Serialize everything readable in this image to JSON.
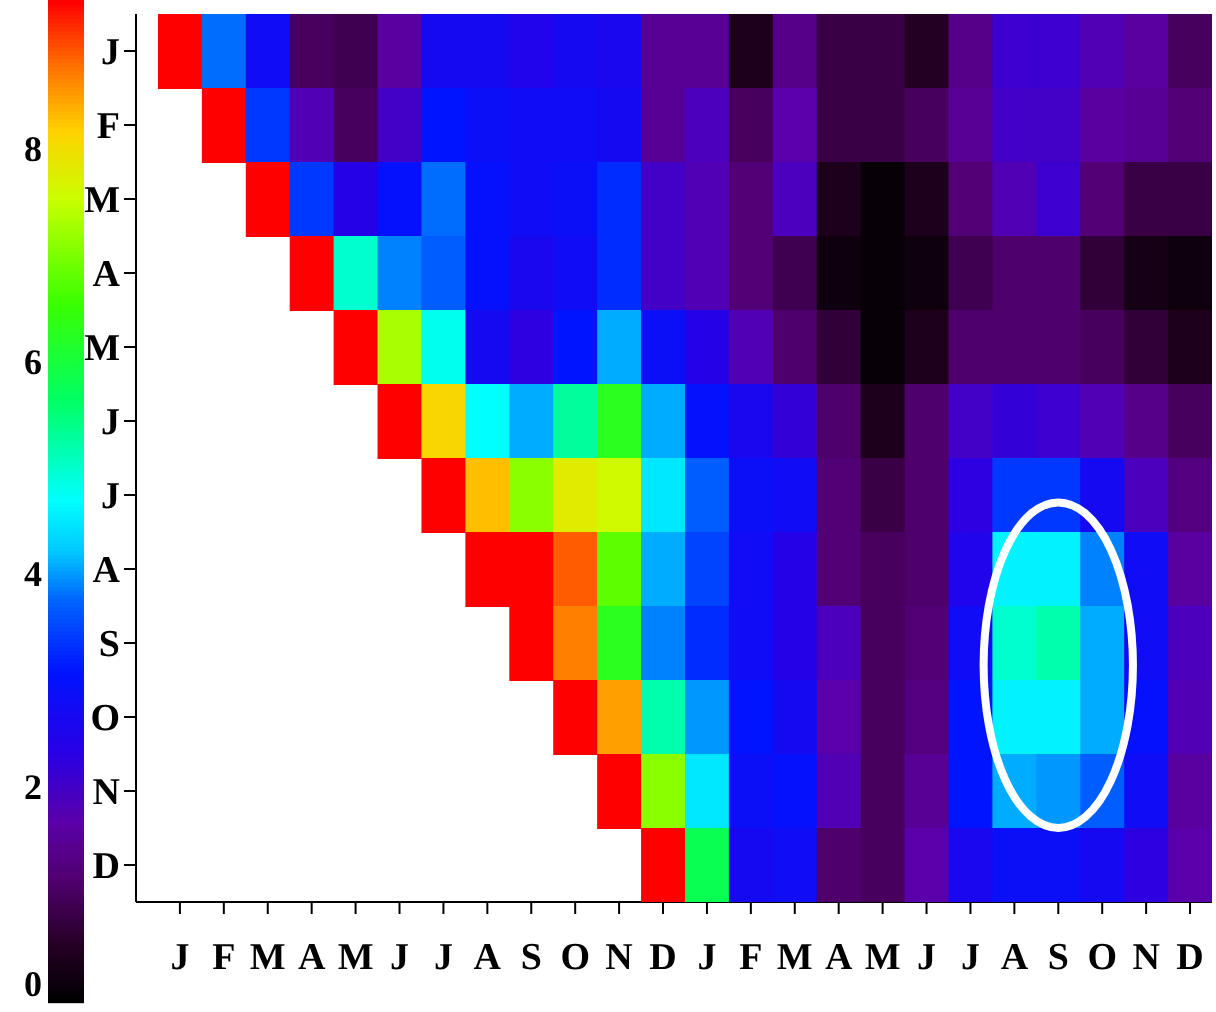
{
  "chart_data": {
    "type": "heatmap",
    "categories": [
      "J",
      "F",
      "M",
      "A",
      "M",
      "J",
      "J",
      "A",
      "S",
      "O",
      "N",
      "D",
      "J",
      "F",
      "M",
      "A",
      "M",
      "J",
      "J",
      "A",
      "S",
      "O",
      "N",
      "D"
    ],
    "y_categories": [
      "J",
      "F",
      "M",
      "A",
      "M",
      "J",
      "J",
      "A",
      "S",
      "O",
      "N",
      "D"
    ],
    "cells": [
      [
        9.4,
        3.8,
        2.8,
        1.0,
        0.9,
        1.6,
        2.7,
        2.7,
        2.5,
        2.7,
        2.6,
        1.5,
        1.5,
        0.4,
        1.4,
        0.8,
        0.8,
        0.5,
        1.4,
        2.1,
        2.1,
        1.8,
        1.6,
        1.0
      ],
      [
        null,
        9.4,
        3.4,
        1.8,
        1.0,
        2.0,
        3.1,
        2.9,
        2.8,
        2.8,
        2.7,
        1.5,
        1.9,
        1.0,
        1.7,
        0.8,
        0.8,
        1.0,
        1.5,
        2.0,
        2.0,
        1.6,
        1.5,
        1.2
      ],
      [
        null,
        null,
        9.4,
        3.4,
        2.4,
        3.0,
        3.8,
        3.0,
        2.8,
        2.9,
        3.3,
        2.0,
        1.8,
        1.2,
        1.9,
        0.4,
        0.1,
        0.4,
        1.2,
        1.8,
        2.1,
        1.2,
        0.8,
        0.8
      ],
      [
        null,
        null,
        null,
        9.4,
        5.0,
        3.9,
        3.7,
        3.0,
        2.6,
        2.8,
        3.3,
        2.0,
        1.8,
        1.2,
        0.9,
        0.2,
        0.1,
        0.2,
        0.9,
        1.1,
        1.1,
        0.7,
        0.3,
        0.2
      ],
      [
        null,
        null,
        null,
        null,
        9.4,
        7.3,
        4.8,
        2.7,
        2.3,
        3.1,
        4.1,
        2.9,
        2.4,
        1.8,
        1.1,
        0.7,
        0.1,
        0.4,
        1.1,
        1.1,
        1.1,
        1.0,
        0.7,
        0.4
      ],
      [
        null,
        null,
        null,
        null,
        null,
        9.4,
        8.1,
        4.7,
        4.1,
        5.3,
        6.3,
        4.1,
        3.0,
        2.6,
        2.2,
        1.1,
        0.4,
        1.1,
        2.0,
        2.2,
        2.1,
        1.8,
        1.4,
        1.0
      ],
      [
        null,
        null,
        null,
        null,
        null,
        null,
        9.4,
        8.3,
        7.1,
        7.8,
        7.6,
        4.5,
        3.7,
        2.9,
        2.8,
        1.2,
        0.8,
        1.1,
        2.3,
        3.4,
        3.4,
        2.7,
        1.9,
        1.3
      ],
      [
        null,
        null,
        null,
        null,
        null,
        null,
        null,
        9.4,
        9.4,
        8.9,
        6.8,
        4.1,
        3.5,
        2.8,
        2.4,
        1.2,
        1.0,
        1.1,
        2.5,
        4.6,
        4.6,
        3.9,
        2.8,
        1.6
      ],
      [
        null,
        null,
        null,
        null,
        null,
        null,
        null,
        null,
        9.4,
        8.7,
        6.3,
        3.9,
        3.3,
        2.8,
        2.4,
        1.9,
        1.0,
        1.2,
        2.8,
        5.0,
        5.2,
        4.1,
        2.8,
        1.9
      ],
      [
        null,
        null,
        null,
        null,
        null,
        null,
        null,
        null,
        null,
        9.4,
        8.5,
        5.2,
        4.0,
        3.1,
        2.7,
        1.7,
        1.0,
        1.3,
        3.1,
        4.6,
        4.6,
        4.1,
        3.0,
        1.8
      ],
      [
        null,
        null,
        null,
        null,
        null,
        null,
        null,
        null,
        null,
        null,
        9.4,
        7.1,
        4.5,
        2.9,
        3.0,
        1.8,
        1.0,
        1.5,
        3.1,
        4.1,
        4.0,
        3.7,
        2.8,
        1.6
      ],
      [
        null,
        null,
        null,
        null,
        null,
        null,
        null,
        null,
        null,
        null,
        null,
        9.4,
        5.8,
        2.7,
        2.8,
        1.1,
        1.0,
        1.7,
        2.6,
        2.9,
        2.9,
        2.7,
        2.3,
        1.7
      ]
    ],
    "clim": [
      0,
      9.4
    ],
    "cticks": [
      0,
      2,
      4,
      6,
      8
    ]
  }
}
